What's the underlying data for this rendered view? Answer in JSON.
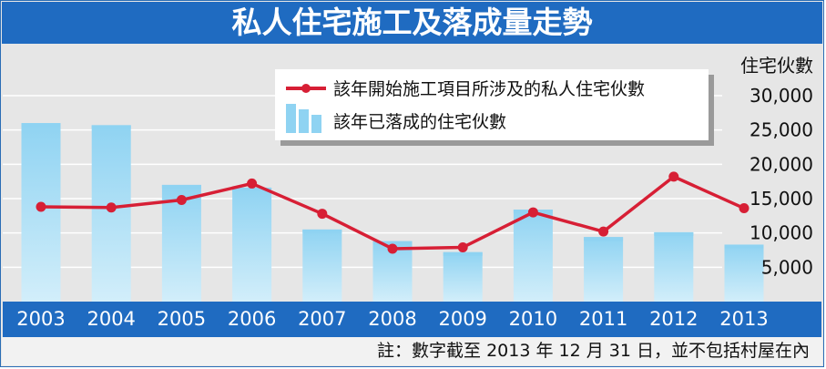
{
  "header": {
    "title": "私人住宅施工及落成量走勢"
  },
  "footer": {
    "note": "註：數字截至 2013 年 12 月 31 日，並不包括村屋在內"
  },
  "colors": {
    "bar": "#8fd3f2",
    "bar_light": "#d2eefa",
    "line": "#d71f35",
    "title_bg": "#1f6bc1",
    "axis_band": "#1f6bc1"
  },
  "chart_data": {
    "type": "bar",
    "categories": [
      "2003",
      "2004",
      "2005",
      "2006",
      "2007",
      "2008",
      "2009",
      "2010",
      "2011",
      "2012",
      "2013"
    ],
    "ylabel": "住宅伙數",
    "yticks": [
      5000,
      10000,
      15000,
      20000,
      25000,
      30000
    ],
    "ytick_labels": [
      "5,000",
      "10,000",
      "15,000",
      "20,000",
      "25,000",
      "30,000"
    ],
    "ylim": [
      0,
      30000
    ],
    "grid": true,
    "legend_position": "top-right",
    "series": [
      {
        "name": "該年已落成的住宅伙數",
        "kind": "bar",
        "values": [
          26000,
          25700,
          17000,
          16600,
          10500,
          8800,
          7200,
          13400,
          9400,
          10100,
          8300
        ]
      },
      {
        "name": "該年開始施工項目所涉及的私人住宅伙數",
        "kind": "line",
        "values": [
          13800,
          13700,
          14800,
          17200,
          12800,
          7700,
          7900,
          13000,
          10200,
          18200,
          13600
        ]
      }
    ]
  }
}
